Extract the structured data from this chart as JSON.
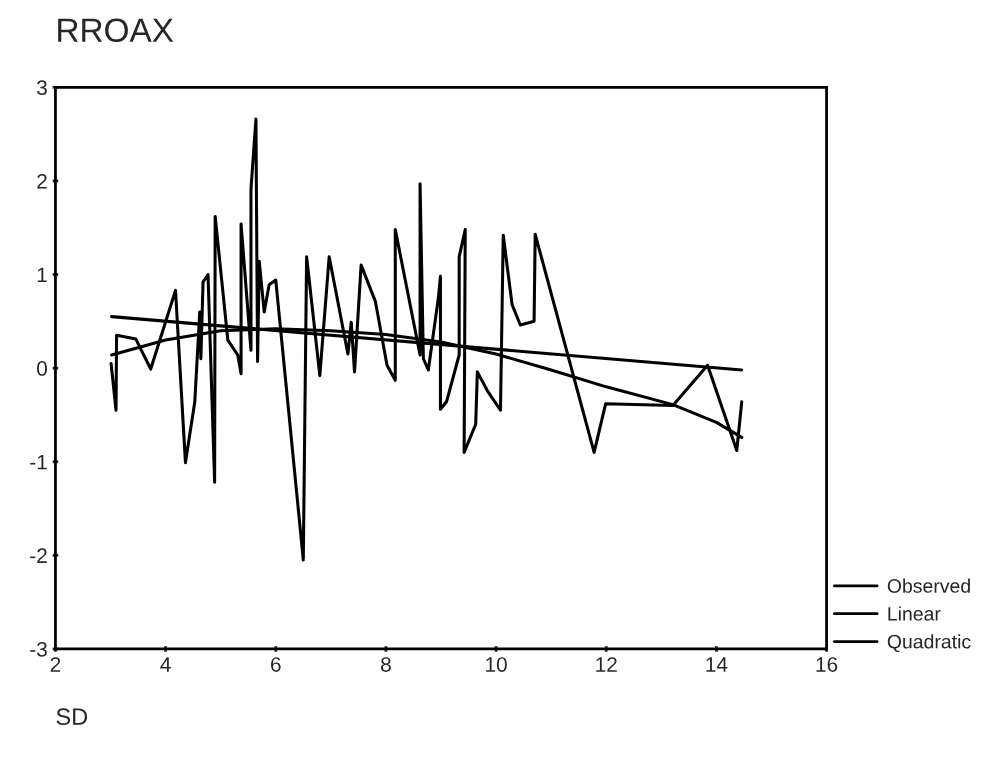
{
  "chart_data": {
    "type": "line",
    "title": "RROAX",
    "xlabel": "SD",
    "xlim": [
      2,
      16
    ],
    "xticks": [
      2,
      4,
      6,
      8,
      10,
      12,
      14,
      16
    ],
    "ylim": [
      -3,
      3
    ],
    "yticks": [
      -3,
      -2,
      -1,
      0,
      1,
      2,
      3
    ],
    "grid": false,
    "legend": "bottom right",
    "series": [
      {
        "name": "Observed",
        "color": "#000000",
        "x": [
          3.01,
          3.1,
          3.11,
          3.46,
          3.73,
          4.18,
          4.36,
          4.53,
          4.62,
          4.64,
          4.68,
          4.77,
          4.89,
          4.9,
          5.13,
          5.31,
          5.37,
          5.37,
          5.55,
          5.55,
          5.64,
          5.67,
          5.7,
          5.79,
          5.88,
          6.0,
          6.5,
          6.56,
          6.8,
          6.97,
          7.31,
          7.37,
          7.43,
          7.55,
          7.81,
          8.02,
          8.17,
          8.17,
          8.62,
          8.62,
          8.68,
          8.77,
          8.95,
          8.99,
          8.99,
          9.1,
          9.33,
          9.33,
          9.44,
          9.42,
          9.63,
          9.66,
          9.84,
          10.08,
          10.13,
          10.29,
          10.44,
          10.69,
          10.71,
          11.78,
          11.99,
          13.21,
          13.84,
          14.37,
          14.46
        ],
        "values": [
          0.05,
          -0.45,
          0.35,
          0.31,
          -0.01,
          0.83,
          -1.01,
          -0.36,
          0.6,
          0.1,
          0.92,
          1.0,
          -1.22,
          1.62,
          0.3,
          0.14,
          -0.06,
          1.54,
          0.19,
          1.91,
          2.66,
          0.07,
          1.14,
          0.6,
          0.89,
          0.94,
          -2.05,
          1.19,
          -0.08,
          1.19,
          0.15,
          0.49,
          -0.04,
          1.1,
          0.71,
          0.03,
          -0.13,
          1.48,
          0.14,
          1.97,
          0.1,
          -0.02,
          0.74,
          0.98,
          -0.44,
          -0.36,
          0.14,
          1.19,
          1.48,
          -0.9,
          -0.6,
          -0.04,
          -0.24,
          -0.45,
          1.42,
          0.68,
          0.46,
          0.5,
          1.43,
          -0.9,
          -0.38,
          -0.4,
          0.03,
          -0.88,
          -0.36
        ]
      },
      {
        "name": "Linear",
        "color": "#000000",
        "x": [
          3.02,
          14.46
        ],
        "values": [
          0.55,
          -0.02
        ]
      },
      {
        "name": "Quadratic",
        "color": "#000000",
        "x": [
          3.02,
          4,
          5,
          6,
          7,
          8,
          9,
          10,
          11,
          12,
          13.21,
          14,
          14.46
        ],
        "values": [
          0.14,
          0.3,
          0.4,
          0.42,
          0.4,
          0.36,
          0.28,
          0.15,
          -0.02,
          -0.2,
          -0.39,
          -0.58,
          -0.74
        ]
      }
    ]
  }
}
